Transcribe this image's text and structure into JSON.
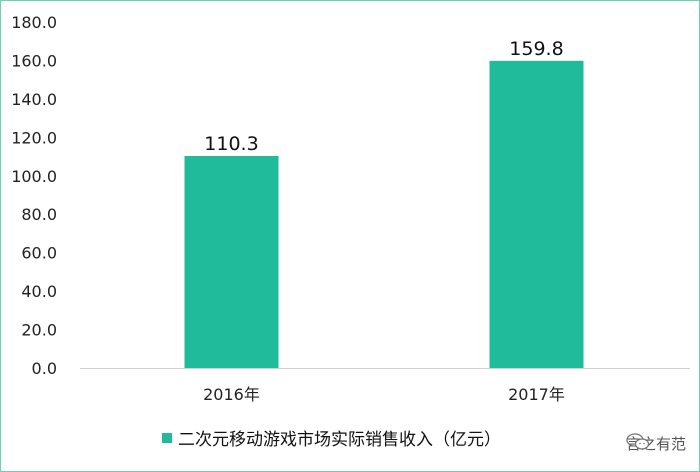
{
  "chart_data": {
    "type": "bar",
    "categories": [
      "2016年",
      "2017年"
    ],
    "series": [
      {
        "name": "二次元移动游戏市场实际销售收入（亿元）",
        "values": [
          110.3,
          159.8
        ],
        "color": "#1fbb9a"
      }
    ],
    "data_labels": [
      "110.3",
      "159.8"
    ],
    "y_ticks": [
      "0.0",
      "20.0",
      "40.0",
      "60.0",
      "80.0",
      "100.0",
      "120.0",
      "140.0",
      "160.0",
      "180.0"
    ],
    "ylim": [
      0,
      180
    ],
    "grid": false,
    "legend_position": "bottom-center"
  },
  "watermark": {
    "text": "言之有范",
    "icon": "wechat-icon"
  }
}
